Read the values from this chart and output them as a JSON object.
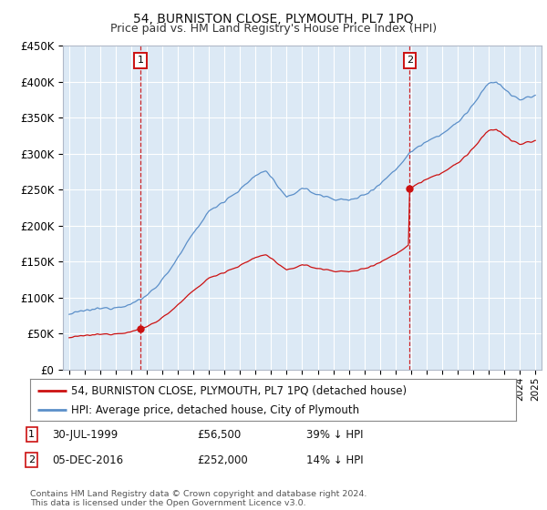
{
  "title": "54, BURNISTON CLOSE, PLYMOUTH, PL7 1PQ",
  "subtitle": "Price paid vs. HM Land Registry's House Price Index (HPI)",
  "sale1_year": 1999.583,
  "sale1_price": 56500,
  "sale2_year": 2016.917,
  "sale2_price": 252000,
  "legend_line1": "54, BURNISTON CLOSE, PLYMOUTH, PL7 1PQ (detached house)",
  "legend_line2": "HPI: Average price, detached house, City of Plymouth",
  "annotation1_date": "30-JUL-1999",
  "annotation1_price": "£56,500",
  "annotation1_note": "39% ↓ HPI",
  "annotation2_date": "05-DEC-2016",
  "annotation2_price": "£252,000",
  "annotation2_note": "14% ↓ HPI",
  "footer": "Contains HM Land Registry data © Crown copyright and database right 2024.\nThis data is licensed under the Open Government Licence v3.0.",
  "hpi_color": "#5b8fc9",
  "sale_color": "#cc1111",
  "plot_bg": "#dce9f5",
  "grid_color": "#ffffff",
  "ylim": [
    0,
    450000
  ],
  "yticks": [
    0,
    50000,
    100000,
    150000,
    200000,
    250000,
    300000,
    350000,
    400000,
    450000
  ],
  "xstart": 1995,
  "xend": 2025
}
